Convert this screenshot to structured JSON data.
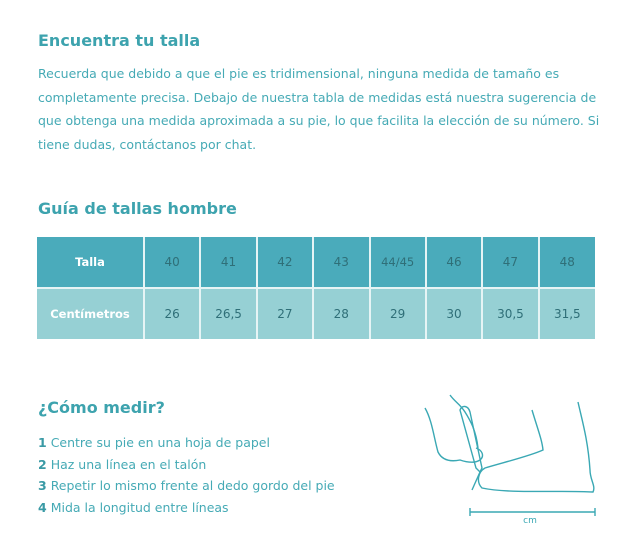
{
  "intro": {
    "title": "Encuentra tu talla",
    "text": "Recuerda que debido a que el pie es tridimensional, ninguna medida de tamaño es completamente precisa. Debajo de nuestra tabla de medidas está nuestra sugerencia de que obtenga una medida aproximada a su pie, lo que facilita la elección de su número. Si tiene dudas, contáctanos por chat."
  },
  "guide": {
    "title": "Guía de tallas hombre",
    "row1": {
      "label": "Talla",
      "values": [
        "40",
        "41",
        "42",
        "43",
        "44/45",
        "46",
        "47",
        "48"
      ],
      "split": [
        "44",
        "45"
      ]
    },
    "row2": {
      "label": "Centímetros",
      "values": [
        "26",
        "26,5",
        "27",
        "28",
        "29",
        "30",
        "30,5",
        "31,5"
      ]
    }
  },
  "measure": {
    "title": "¿Cómo medir?",
    "steps": [
      {
        "n": "1",
        "text": "Centre su pie en una hoja de papel"
      },
      {
        "n": "2",
        "text": "Haz una línea en el talón"
      },
      {
        "n": "3",
        "text": "Repetir lo mismo frente al dedo gordo del pie"
      },
      {
        "n": "4",
        "text": "Mida la longitud entre líneas"
      }
    ],
    "unit": "cm"
  },
  "colors": {
    "accent": "#3da3ae",
    "header_row": "#4aabbb",
    "data_row": "#96d0d4"
  }
}
